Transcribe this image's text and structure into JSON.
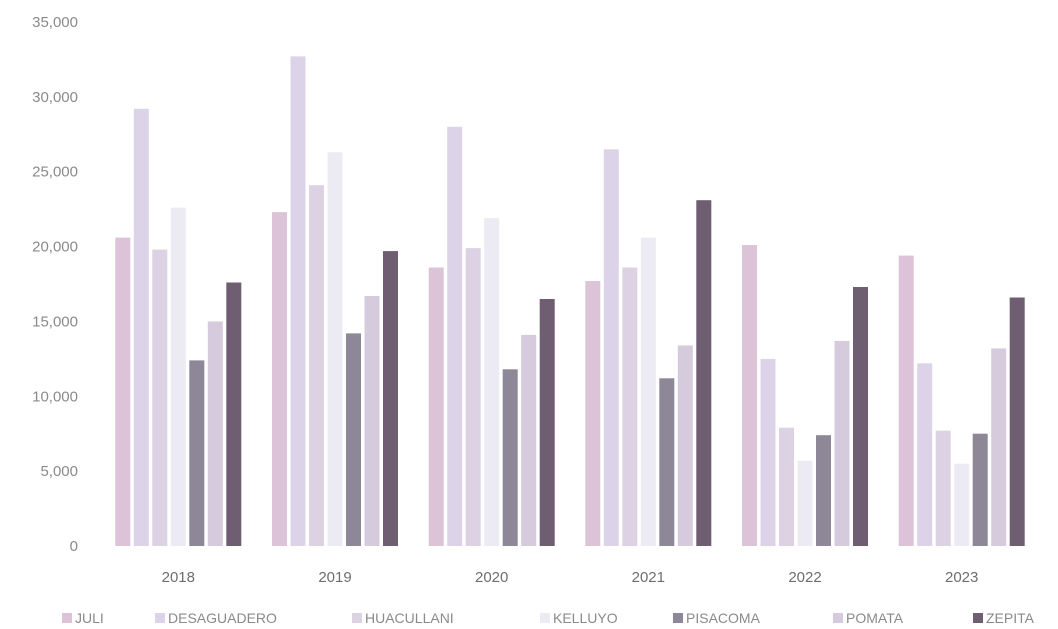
{
  "chart_data": {
    "type": "bar",
    "title": "",
    "xlabel": "",
    "ylabel": "",
    "ylim": [
      0,
      35000
    ],
    "yticks": [
      0,
      5000,
      10000,
      15000,
      20000,
      25000,
      30000,
      35000
    ],
    "ytick_labels": [
      "0",
      "5,000",
      "10,000",
      "15,000",
      "20,000",
      "25,000",
      "30,000",
      "35,000"
    ],
    "grid": false,
    "legend_position": "bottom",
    "categories": [
      "2018",
      "2019",
      "2020",
      "2021",
      "2022",
      "2023"
    ],
    "series": [
      {
        "name": "JULI",
        "color": "#dcc3d8",
        "values": [
          20600,
          22300,
          18600,
          17700,
          20100,
          19400
        ]
      },
      {
        "name": "DESAGUADERO",
        "color": "#ddd3e8",
        "values": [
          29200,
          32700,
          28000,
          26500,
          12500,
          12200
        ]
      },
      {
        "name": "HUACULLANI",
        "color": "#dcd2e3",
        "values": [
          19800,
          24100,
          19900,
          18600,
          7900,
          7700
        ]
      },
      {
        "name": "KELLUYO",
        "color": "#ecebf3",
        "values": [
          22600,
          26300,
          21900,
          20600,
          5700,
          5500
        ]
      },
      {
        "name": "PISACOMA",
        "color": "#8e8797",
        "values": [
          12400,
          14200,
          11800,
          11200,
          7400,
          7500
        ]
      },
      {
        "name": "POMATA",
        "color": "#d5cbdd",
        "values": [
          15000,
          16700,
          14100,
          13400,
          13700,
          13200
        ]
      },
      {
        "name": "ZEPITA",
        "color": "#6f5d72",
        "values": [
          17600,
          19700,
          16500,
          23100,
          17300,
          16600
        ]
      }
    ]
  }
}
